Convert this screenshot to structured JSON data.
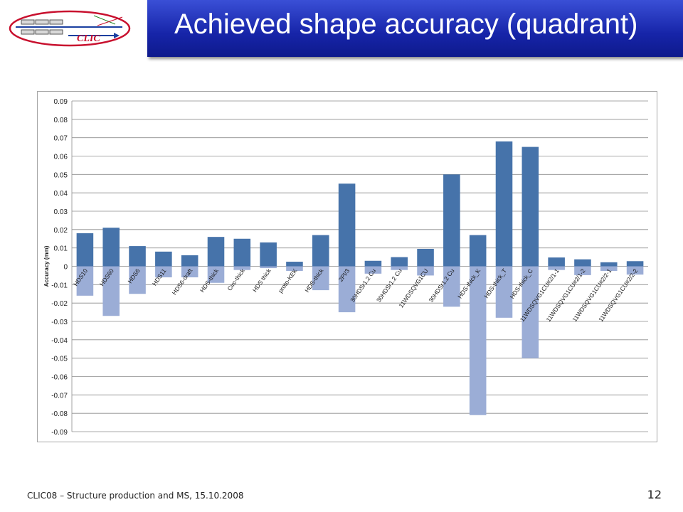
{
  "header": {
    "title": "Achieved shape accuracy (quadrant)",
    "logo_text": "CLIC"
  },
  "footer": {
    "text": "CLIC08 – Structure production and MS, 15.10.2008",
    "page_number": "12"
  },
  "chart_data": {
    "type": "bar",
    "title": "",
    "xlabel": "",
    "ylabel": "Accuracy (mm)",
    "ylim": [
      -0.09,
      0.09
    ],
    "yticks": [
      "0.09",
      "0.08",
      "0.07",
      "0.06",
      "0.05",
      "0.04",
      "0.03",
      "0.02",
      "0.01",
      "0",
      "-0.01",
      "-0.02",
      "-0.03",
      "-0.04",
      "-0.05",
      "-0.06",
      "-0.07",
      "-0.08",
      "-0.09"
    ],
    "grid": true,
    "legend": "none",
    "categories": [
      "HDS10",
      "HDS60",
      "HDS6",
      "HDS11",
      "HDS6-draft",
      "HDS-thick",
      "Circ-thick",
      "HDS thick",
      "proto-KEK",
      "HDS-thick",
      "2PI/3",
      "30HDSr1.2 Cu",
      "30HDSr1.2 Cu",
      "11WDSQVG1CU",
      "30HDSr1.2 Cu",
      "HDS-thick_K",
      "HDS-thick_T",
      "HDS-thick_C",
      "11WDSQVG1CU#2/1-1",
      "11WDSQVG1CU#2/1-2",
      "11WDSQVG1CU#2/2-1",
      "11WDSQVG1CU#2/2-2"
    ],
    "series": [
      {
        "color": "#4673aa",
        "values": [
          0.018,
          0.021,
          0.011,
          0.008,
          0.006,
          0.016,
          0.015,
          0.013,
          0.0025,
          0.017,
          0.045,
          0.003,
          0.005,
          0.0095,
          0.05,
          0.017,
          0.068,
          0.065,
          0.0048,
          0.0038,
          0.0022,
          0.0028
        ]
      },
      {
        "color": "#9badd6",
        "values": [
          -0.016,
          -0.027,
          -0.015,
          -0.006,
          -0.006,
          -0.009,
          -0.002,
          -0.001,
          -0.0025,
          -0.013,
          -0.025,
          -0.004,
          -0.002,
          -0.005,
          -0.022,
          -0.081,
          -0.028,
          -0.05,
          -0.002,
          -0.0048,
          -0.0025,
          -0.0045
        ]
      }
    ]
  }
}
